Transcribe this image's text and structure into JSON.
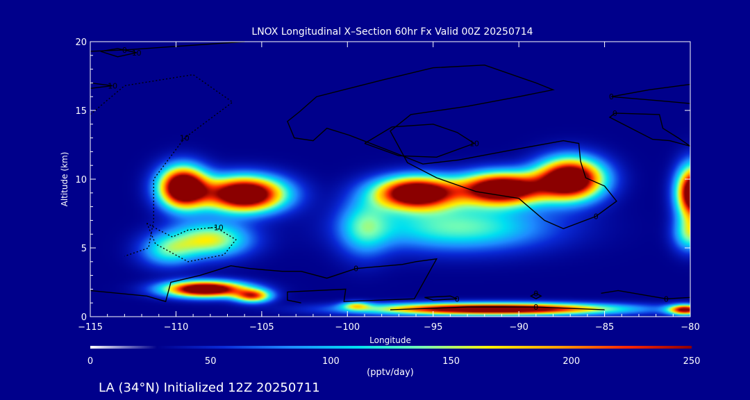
{
  "chart_data": {
    "type": "heatmap",
    "title": "LNOX Longitudinal X–Section 60hr  Fx Valid 00Z 20250714",
    "xlabel": "Longitude",
    "ylabel": "Altitude (km)",
    "xlim": [
      -115,
      -80
    ],
    "ylim": [
      0,
      20
    ],
    "x_ticks": [
      -115,
      -110,
      -105,
      -100,
      -95,
      -90,
      -85,
      -80
    ],
    "x_tick_labels": [
      "−115",
      "−110",
      "−105",
      "−100",
      "−95",
      "−90",
      "−85",
      "−80"
    ],
    "y_ticks": [
      0,
      5,
      10,
      15,
      20
    ],
    "y_tick_labels": [
      "0",
      "5",
      "10",
      "15",
      "20"
    ],
    "grid": false,
    "colorbar": {
      "label": "(pptv/day)",
      "min": 0,
      "max": 250,
      "ticks": [
        0,
        50,
        100,
        150,
        200,
        250
      ],
      "tick_labels": [
        "0",
        "50",
        "100",
        "150",
        "200",
        "250"
      ],
      "colors": [
        "#ffffff",
        "#00008b",
        "#0a2ad6",
        "#1e8cff",
        "#00e0f0",
        "#7dffb0",
        "#fff000",
        "#ffa000",
        "#ff2800",
        "#8b0000"
      ]
    },
    "heat_field": {
      "background": 0,
      "blobs": [
        {
          "x": -109.6,
          "y": 9.4,
          "sx": 1.3,
          "sy": 1.4,
          "v": 340
        },
        {
          "x": -106.0,
          "y": 8.9,
          "sx": 2.2,
          "sy": 1.2,
          "v": 340
        },
        {
          "x": -108.0,
          "y": 5.6,
          "sx": 2.2,
          "sy": 1.2,
          "v": 150
        },
        {
          "x": -110.5,
          "y": 4.8,
          "sx": 1.5,
          "sy": 1.1,
          "v": 95
        },
        {
          "x": -108.3,
          "y": 2.0,
          "sx": 2.2,
          "sy": 0.55,
          "v": 330
        },
        {
          "x": -105.5,
          "y": 1.5,
          "sx": 1.0,
          "sy": 0.45,
          "v": 200
        },
        {
          "x": -96.0,
          "y": 9.0,
          "sx": 2.2,
          "sy": 1.1,
          "v": 330
        },
        {
          "x": -91.0,
          "y": 9.3,
          "sx": 2.3,
          "sy": 1.1,
          "v": 330
        },
        {
          "x": -87.0,
          "y": 10.0,
          "sx": 1.8,
          "sy": 1.4,
          "v": 340
        },
        {
          "x": -93.5,
          "y": 6.5,
          "sx": 5.0,
          "sy": 1.6,
          "v": 120
        },
        {
          "x": -99.0,
          "y": 6.5,
          "sx": 1.4,
          "sy": 2.0,
          "v": 90
        },
        {
          "x": -91.5,
          "y": 0.55,
          "sx": 6.5,
          "sy": 0.4,
          "v": 320
        },
        {
          "x": -99.5,
          "y": 0.8,
          "sx": 0.8,
          "sy": 0.3,
          "v": 110
        },
        {
          "x": -79.8,
          "y": 9.0,
          "sx": 0.9,
          "sy": 1.8,
          "v": 340
        },
        {
          "x": -80.0,
          "y": 6.0,
          "sx": 0.9,
          "sy": 1.2,
          "v": 120
        },
        {
          "x": -80.3,
          "y": 0.5,
          "sx": 0.9,
          "sy": 0.35,
          "v": 250
        }
      ]
    },
    "contours": [
      {
        "value": 0,
        "label": "0",
        "style": "solid",
        "points": [
          [
            -106,
            20
          ],
          [
            -113,
            19.4
          ],
          [
            -115,
            19.3
          ]
        ]
      },
      {
        "value": 10,
        "label": "10",
        "style": "solid",
        "points": [
          [
            -114.4,
            19.3
          ],
          [
            -113.4,
            19.5
          ],
          [
            -112.3,
            19.2
          ],
          [
            -113.4,
            18.9
          ],
          [
            -114.4,
            19.3
          ]
        ]
      },
      {
        "value": 10,
        "label": "10",
        "style": "solid",
        "points": [
          [
            -115,
            17.0
          ],
          [
            -113.7,
            16.8
          ],
          [
            -115,
            16.6
          ]
        ]
      },
      {
        "value": 10,
        "label": "10",
        "style": "dashed",
        "points": [
          [
            -115,
            14.7
          ],
          [
            -113,
            16.8
          ],
          [
            -109,
            17.6
          ],
          [
            -106.7,
            15.6
          ],
          [
            -109.5,
            13.0
          ],
          [
            -111.3,
            10.0
          ],
          [
            -111.3,
            7.0
          ],
          [
            -111.6,
            5.0
          ],
          [
            -113,
            4.4
          ]
        ]
      },
      {
        "value": -10,
        "label": "−10",
        "style": "dashed",
        "points": [
          [
            -111.7,
            6.8
          ],
          [
            -111.2,
            5.3
          ],
          [
            -109.3,
            4.0
          ],
          [
            -107.2,
            4.5
          ],
          [
            -106.5,
            5.6
          ],
          [
            -107.7,
            6.5
          ],
          [
            -109.3,
            6.3
          ],
          [
            -110.2,
            5.8
          ],
          [
            -111.0,
            6.3
          ],
          [
            -111.7,
            6.8
          ]
        ]
      },
      {
        "value": 0,
        "label": "0",
        "style": "solid",
        "points": [
          [
            -115,
            1.9
          ],
          [
            -111.7,
            1.5
          ],
          [
            -110.6,
            1.1
          ],
          [
            -110.3,
            2.5
          ],
          [
            -108.6,
            3.0
          ],
          [
            -106.8,
            3.7
          ],
          [
            -105.7,
            3.5
          ],
          [
            -103.8,
            3.3
          ],
          [
            -102.7,
            3.3
          ],
          [
            -101.2,
            2.8
          ],
          [
            -99.5,
            3.5
          ],
          [
            -96.8,
            3.8
          ],
          [
            -96.0,
            4.0
          ],
          [
            -94.8,
            4.2
          ],
          [
            -96.1,
            1.3
          ],
          [
            -100.2,
            1.1
          ],
          [
            -100.1,
            2.0
          ],
          [
            -103.5,
            1.8
          ],
          [
            -103.5,
            1.2
          ],
          [
            -102.7,
            1.0
          ]
        ]
      },
      {
        "value": 0,
        "label": "0",
        "style": "solid",
        "points": [
          [
            -102.8,
            14.9
          ],
          [
            -101.8,
            16.0
          ],
          [
            -98.0,
            17.2
          ],
          [
            -95.0,
            18.1
          ],
          [
            -92.0,
            18.3
          ],
          [
            -89.0,
            17.0
          ],
          [
            -88.0,
            16.5
          ],
          [
            -90.0,
            16.0
          ],
          [
            -93.0,
            15.3
          ],
          [
            -96.3,
            14.7
          ],
          [
            -97.5,
            13.5
          ],
          [
            -96.5,
            11.2
          ],
          [
            -94.8,
            10.1
          ],
          [
            -92.5,
            9.1
          ],
          [
            -90.0,
            8.6
          ],
          [
            -88.5,
            7.0
          ],
          [
            -87.4,
            6.4
          ],
          [
            -85.5,
            7.3
          ],
          [
            -84.3,
            8.4
          ],
          [
            -85.0,
            9.5
          ],
          [
            -86.1,
            10.1
          ],
          [
            -86.4,
            11.3
          ],
          [
            -86.5,
            12.6
          ],
          [
            -87.4,
            12.8
          ],
          [
            -90.5,
            12.1
          ],
          [
            -93.5,
            11.4
          ],
          [
            -95.6,
            11.1
          ],
          [
            -97.2,
            11.9
          ],
          [
            -99.9,
            13.2
          ],
          [
            -101.2,
            13.7
          ],
          [
            -102.0,
            12.8
          ],
          [
            -103.1,
            13.0
          ],
          [
            -103.5,
            14.2
          ],
          [
            -102.8,
            14.9
          ]
        ]
      },
      {
        "value": 10,
        "label": "10",
        "style": "solid",
        "points": [
          [
            -99.0,
            12.6
          ],
          [
            -97.4,
            13.8
          ],
          [
            -95.0,
            14.0
          ],
          [
            -93.6,
            13.4
          ],
          [
            -92.6,
            12.6
          ],
          [
            -94.8,
            11.6
          ],
          [
            -97.0,
            11.7
          ],
          [
            -99.0,
            12.6
          ]
        ]
      },
      {
        "value": 0,
        "label": "0",
        "style": "solid",
        "points": [
          [
            -80,
            15.5
          ],
          [
            -81.8,
            15.7
          ],
          [
            -84.6,
            16.0
          ],
          [
            -82.4,
            16.5
          ],
          [
            -80,
            16.9
          ]
        ]
      },
      {
        "value": 0,
        "label": "0",
        "style": "solid",
        "points": [
          [
            -80,
            12.4
          ],
          [
            -81.2,
            12.8
          ],
          [
            -82.2,
            12.9
          ],
          [
            -84.7,
            14.5
          ],
          [
            -84.4,
            14.8
          ],
          [
            -81.8,
            14.7
          ],
          [
            -81.6,
            13.7
          ],
          [
            -80.7,
            13.0
          ],
          [
            -80,
            12.4
          ]
        ]
      },
      {
        "value": 0,
        "label": "0",
        "style": "solid",
        "points": [
          [
            -85.2,
            1.7
          ],
          [
            -84.2,
            1.9
          ],
          [
            -81.4,
            1.3
          ],
          [
            -80,
            1.4
          ]
        ]
      },
      {
        "value": 0,
        "label": "0",
        "style": "solid",
        "points": [
          [
            -89.0,
            1.3
          ],
          [
            -89.3,
            1.5
          ],
          [
            -89.0,
            1.7
          ],
          [
            -88.7,
            1.5
          ],
          [
            -89.0,
            1.3
          ]
        ]
      },
      {
        "value": 0,
        "label": "0",
        "style": "solid",
        "points": [
          [
            -95.5,
            1.4
          ],
          [
            -94.0,
            1.5
          ],
          [
            -93.6,
            1.3
          ],
          [
            -95.0,
            1.2
          ],
          [
            -95.5,
            1.4
          ]
        ]
      },
      {
        "value": 0,
        "label": "0",
        "style": "solid",
        "points": [
          [
            -97.5,
            0.5
          ],
          [
            -93.0,
            0.7
          ],
          [
            -89.0,
            0.7
          ],
          [
            -85.0,
            0.5
          ]
        ]
      }
    ]
  },
  "footer_text": "LA (34°N) Initialized 12Z 20250711"
}
